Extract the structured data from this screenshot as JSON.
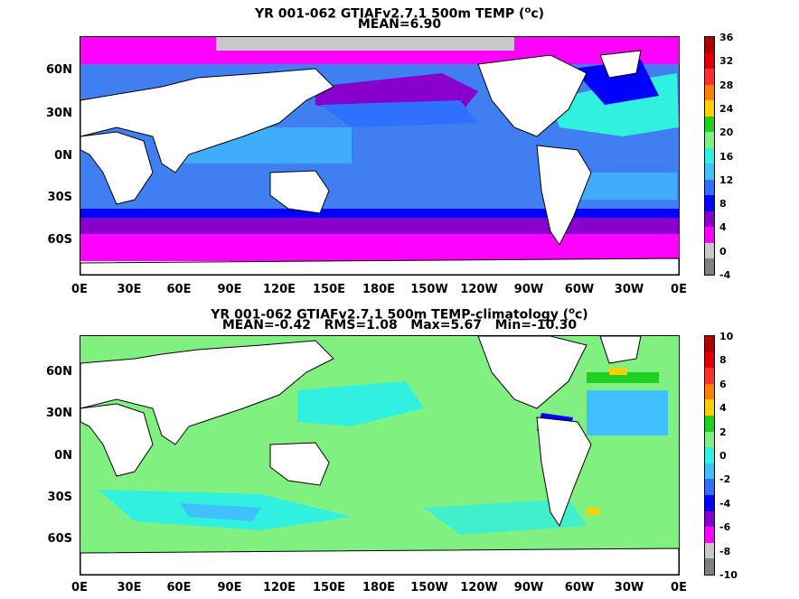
{
  "top": {
    "title_prefix": "YR 001-062 GTIAFv2.7.1 500m TEMP (",
    "title_sup": "o",
    "title_suffix": "c)",
    "subtitle": "MEAN=6.90",
    "colorbar_labels": [
      "36",
      "32",
      "28",
      "24",
      "20",
      "16",
      "12",
      "8",
      "4",
      "0",
      "-4"
    ],
    "colors": [
      "#b00000",
      "#e00000",
      "#ff3030",
      "#ff8000",
      "#ffd000",
      "#20d020",
      "#80f080",
      "#30f0e0",
      "#40c0ff",
      "#3070ff",
      "#0000ff",
      "#8800cc",
      "#ff00ff",
      "#c8c8c8",
      "#808080"
    ]
  },
  "bottom": {
    "title_prefix": "YR 001-062 GTIAFv2.7.1 500m TEMP-climatology (",
    "title_sup": "o",
    "title_suffix": "c)",
    "subtitle": "MEAN=-0.42   RMS=1.08   Max=5.67   Min=-10.30",
    "colorbar_labels": [
      "10",
      "8",
      "6",
      "4",
      "2",
      "0",
      "-2",
      "-4",
      "-6",
      "-8",
      "-10"
    ],
    "colors": [
      "#b00000",
      "#e00000",
      "#ff3030",
      "#ff8000",
      "#ffd000",
      "#20d020",
      "#80f080",
      "#30f0e0",
      "#40c0ff",
      "#3070ff",
      "#0000ff",
      "#8800cc",
      "#ff00ff",
      "#c8c8c8",
      "#808080"
    ]
  },
  "lat_labels": [
    "60N",
    "30N",
    "0N",
    "30S",
    "60S"
  ],
  "lon_labels": [
    "0E",
    "30E",
    "60E",
    "90E",
    "120E",
    "150E",
    "180E",
    "150W",
    "120W",
    "90W",
    "60W",
    "30W",
    "0E"
  ]
}
